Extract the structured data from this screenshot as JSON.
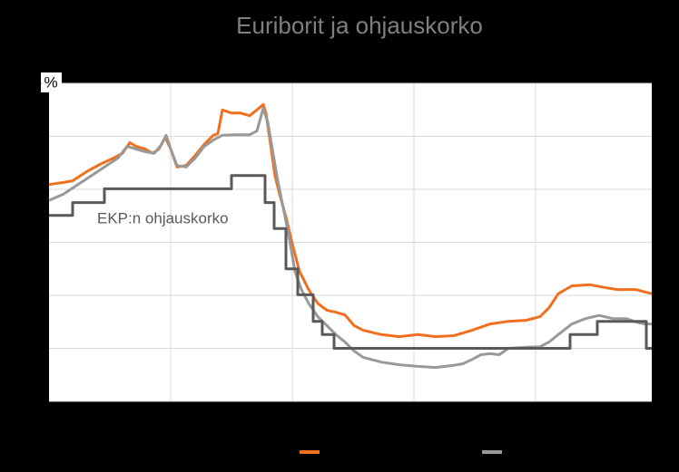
{
  "chart_data": {
    "type": "line",
    "title": "Euriborit ja ohjauskorko",
    "y_label": "%",
    "xlim": [
      0,
      664
    ],
    "xticks": [
      134,
      268,
      402,
      536
    ],
    "ylim": [
      -1,
      5
    ],
    "yticks": [
      -1,
      0,
      1,
      2,
      3,
      4,
      5
    ],
    "grid": true,
    "series": [
      {
        "color": "#f07020",
        "x": [
          0,
          16,
          26,
          41,
          56,
          71,
          81,
          89,
          96,
          106,
          114,
          121,
          128,
          134,
          141,
          151,
          161,
          171,
          181,
          186,
          191,
          201,
          211,
          221,
          229,
          236,
          239,
          244,
          249,
          254,
          261,
          268,
          276,
          286,
          296,
          306,
          316,
          326,
          336,
          346,
          366,
          386,
          406,
          426,
          446,
          466,
          486,
          506,
          526,
          541,
          551,
          561,
          576,
          596,
          611,
          626,
          646,
          664
        ],
        "values": [
          3.09,
          3.13,
          3.16,
          3.33,
          3.47,
          3.59,
          3.68,
          3.88,
          3.81,
          3.76,
          3.68,
          3.76,
          3.98,
          3.76,
          3.42,
          3.45,
          3.64,
          3.85,
          4.02,
          4.05,
          4.5,
          4.44,
          4.44,
          4.39,
          4.5,
          4.6,
          4.44,
          3.85,
          3.25,
          2.91,
          2.48,
          1.97,
          1.45,
          1.11,
          0.85,
          0.72,
          0.68,
          0.63,
          0.43,
          0.34,
          0.26,
          0.22,
          0.26,
          0.22,
          0.24,
          0.34,
          0.46,
          0.51,
          0.53,
          0.6,
          0.77,
          1.03,
          1.18,
          1.2,
          1.15,
          1.11,
          1.11,
          1.03
        ]
      },
      {
        "color": "#999999",
        "x": [
          0,
          16,
          31,
          46,
          61,
          76,
          86,
          96,
          106,
          116,
          124,
          129,
          134,
          141,
          151,
          161,
          171,
          181,
          191,
          206,
          221,
          229,
          236,
          241,
          246,
          252,
          258,
          264,
          271,
          278,
          286,
          296,
          306,
          316,
          326,
          336,
          346,
          366,
          386,
          406,
          426,
          446,
          456,
          466,
          476,
          486,
          496,
          506,
          526,
          541,
          551,
          561,
          576,
          591,
          606,
          621,
          636,
          646,
          656,
          664
        ],
        "values": [
          2.79,
          2.91,
          3.08,
          3.25,
          3.42,
          3.59,
          3.81,
          3.76,
          3.71,
          3.68,
          3.85,
          4.02,
          3.76,
          3.45,
          3.42,
          3.59,
          3.81,
          3.93,
          4.02,
          4.03,
          4.03,
          4.1,
          4.53,
          4.27,
          3.76,
          3.16,
          2.65,
          2.14,
          1.45,
          1.11,
          0.85,
          0.6,
          0.43,
          0.26,
          0.12,
          -0.05,
          -0.17,
          -0.26,
          -0.31,
          -0.34,
          -0.36,
          -0.32,
          -0.29,
          -0.21,
          -0.12,
          -0.1,
          -0.12,
          0,
          0.02,
          0.03,
          0.12,
          0.26,
          0.46,
          0.56,
          0.62,
          0.56,
          0.56,
          0.5,
          0.46,
          0.46
        ]
      },
      {
        "name": "EKP:n ohjauskorko",
        "color": "#595959",
        "x": [
          0,
          26,
          26,
          61,
          61,
          201,
          201,
          238,
          238,
          248,
          248,
          261,
          261,
          274,
          274,
          291,
          291,
          301,
          301,
          314,
          314,
          574,
          574,
          604,
          604,
          658,
          658,
          664
        ],
        "values": [
          2.51,
          2.51,
          2.75,
          2.75,
          3.01,
          3.01,
          3.26,
          3.26,
          2.75,
          2.75,
          2.26,
          2.26,
          1.5,
          1.5,
          1.01,
          1.01,
          0.51,
          0.51,
          0.26,
          0.26,
          0,
          0,
          0.26,
          0.26,
          0.51,
          0.51,
          0,
          0
        ]
      }
    ]
  }
}
